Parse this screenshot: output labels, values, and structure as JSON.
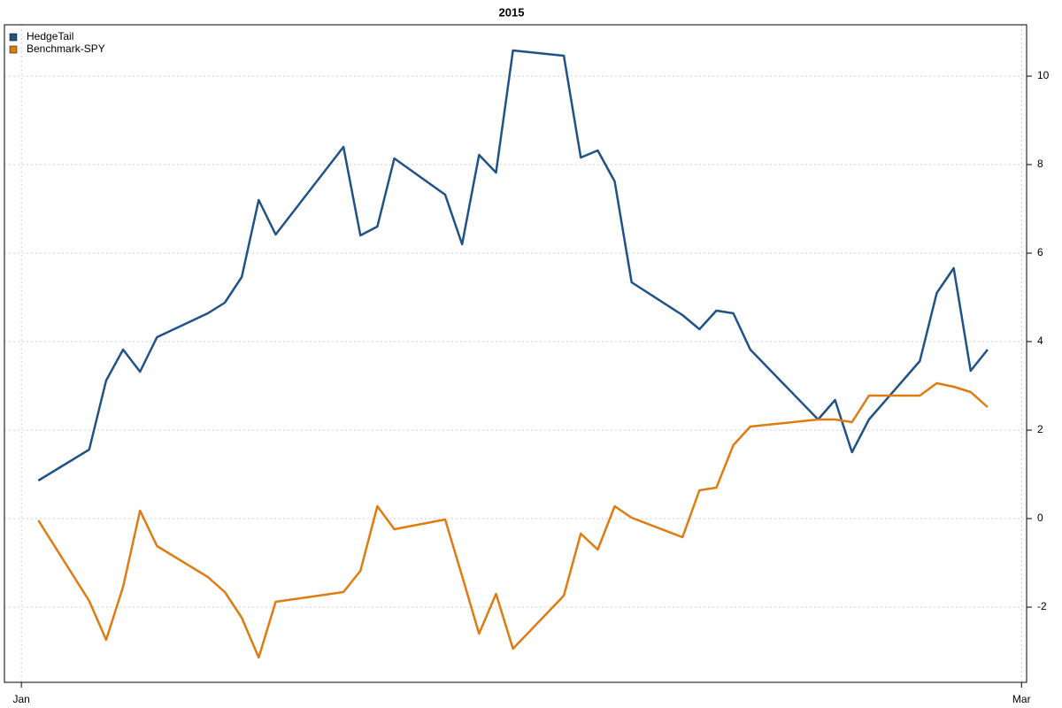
{
  "chart_data": {
    "type": "line",
    "title": "2015",
    "x": [
      1,
      4,
      5,
      6,
      7,
      8,
      11,
      12,
      13,
      14,
      15,
      19,
      20,
      21,
      22,
      25,
      26,
      27,
      28,
      29,
      32,
      33,
      34,
      35,
      36,
      39,
      40,
      41,
      42,
      43,
      47,
      48,
      49,
      50,
      53,
      54,
      55,
      56,
      57
    ],
    "series": [
      {
        "name": "HedgeTail",
        "color": "#1f5286",
        "values": [
          0.86,
          1.56,
          3.12,
          3.82,
          3.32,
          4.1,
          4.64,
          4.88,
          5.46,
          7.2,
          6.42,
          8.4,
          6.4,
          6.6,
          8.14,
          7.32,
          6.2,
          8.22,
          7.82,
          10.58,
          10.46,
          8.16,
          8.32,
          7.62,
          5.34,
          4.6,
          4.28,
          4.7,
          4.64,
          3.82,
          2.24,
          2.68,
          1.5,
          2.24,
          3.56,
          5.1,
          5.66,
          3.34,
          3.82
        ]
      },
      {
        "name": "Benchmark-SPY",
        "color": "#e07b12",
        "values": [
          -0.04,
          -1.86,
          -2.74,
          -1.54,
          0.18,
          -0.62,
          -1.32,
          -1.66,
          -2.24,
          -3.14,
          -1.88,
          -1.66,
          -1.18,
          0.28,
          -0.24,
          -0.02,
          -1.3,
          -2.6,
          -1.7,
          -2.94,
          -1.74,
          -0.34,
          -0.7,
          0.28,
          0.02,
          -0.42,
          0.64,
          0.7,
          1.66,
          2.08,
          2.24,
          2.24,
          2.18,
          2.78,
          2.78,
          3.06,
          2.98,
          2.86,
          2.52
        ]
      }
    ],
    "xlim": [
      -1,
      59.3
    ],
    "xticks": [
      {
        "value": 0,
        "label": "Jan"
      },
      {
        "value": 59,
        "label": "Mar"
      }
    ],
    "ylim": [
      -3.7,
      11.16
    ],
    "yticks": [
      -2,
      0,
      2,
      4,
      6,
      8,
      10
    ],
    "grid": true,
    "legend": "top-left"
  }
}
